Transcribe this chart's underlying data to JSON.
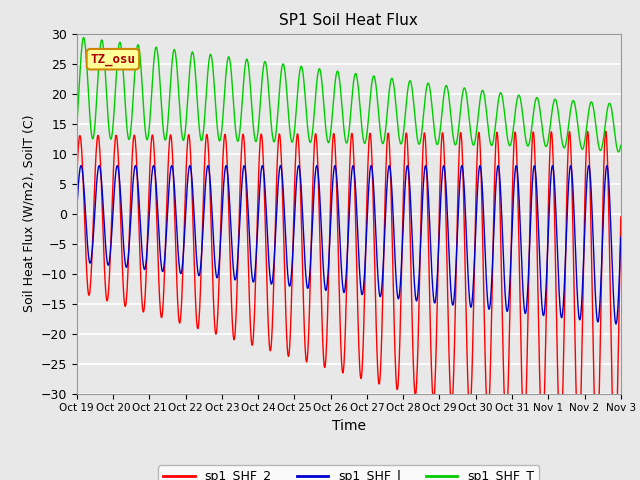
{
  "title": "SP1 Soil Heat Flux",
  "xlabel": "Time",
  "ylabel": "Soil Heat Flux (W/m2), SoilT (C)",
  "ylim": [
    -30,
    30
  ],
  "yticks": [
    -30,
    -25,
    -20,
    -15,
    -10,
    -5,
    0,
    5,
    10,
    15,
    20,
    25,
    30
  ],
  "xtick_labels": [
    "Oct 19",
    "Oct 20",
    "Oct 21",
    "Oct 22",
    "Oct 23",
    "Oct 24",
    "Oct 25",
    "Oct 26",
    "Oct 27",
    "Oct 28",
    "Oct 29",
    "Oct 30",
    "Oct 31",
    "Nov 1",
    "Nov 2",
    "Nov 3"
  ],
  "bg_color": "#e8e8e8",
  "grid_color": "#ffffff",
  "color_shf2": "#ff0000",
  "color_shf1": "#0000cc",
  "color_shft": "#00cc00",
  "annotation_text": "TZ_osu",
  "annotation_fg": "#aa0000",
  "annotation_bg": "#ffff99",
  "annotation_border": "#cc8800",
  "legend_labels": [
    "sp1_SHF_2",
    "sp1_SHF_l",
    "sp1_SHF_T"
  ],
  "n_days": 15,
  "pts_per_day": 96,
  "freq": 2.0
}
